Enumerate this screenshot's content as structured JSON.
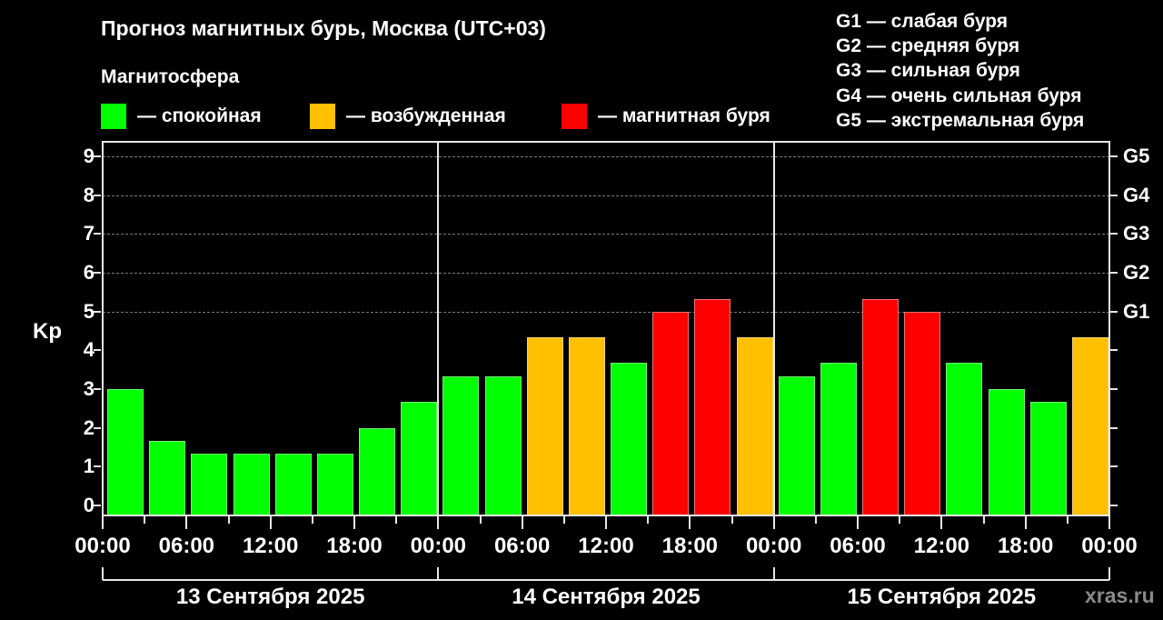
{
  "header": {
    "title": "Прогноз магнитных бурь, Москва (UTC+03)"
  },
  "legend": {
    "title": "Магнитосфера",
    "items": [
      {
        "label": "— спокойная",
        "color": "#00ff00",
        "key": "quiet"
      },
      {
        "label": "— возбужденная",
        "color": "#ffc000",
        "key": "unsettled"
      },
      {
        "label": "— магнитная буря",
        "color": "#ff0000",
        "key": "storm"
      }
    ]
  },
  "g_scale": [
    "G1 — слабая буря",
    "G2 — средняя буря",
    "G3 — сильная буря",
    "G4 — очень сильная буря",
    "G5 — экстремальная буря"
  ],
  "watermark": "xras.ru",
  "chart_data": {
    "type": "bar",
    "title": "Прогноз магнитных бурь, Москва (UTC+03)",
    "ylabel": "Kp",
    "xlabel": "",
    "ylim": [
      0,
      9
    ],
    "yticks": [
      0,
      1,
      2,
      3,
      4,
      5,
      6,
      7,
      8,
      9
    ],
    "right_axis_labels": [
      {
        "value": 5,
        "label": "G1"
      },
      {
        "value": 6,
        "label": "G2"
      },
      {
        "value": 7,
        "label": "G3"
      },
      {
        "value": 8,
        "label": "G4"
      },
      {
        "value": 9,
        "label": "G5"
      }
    ],
    "grid": "dashed horizontal at Kp 5–9",
    "xtick_labels": [
      "00:00",
      "06:00",
      "12:00",
      "18:00",
      "00:00",
      "06:00",
      "12:00",
      "18:00",
      "00:00",
      "06:00",
      "12:00",
      "18:00",
      "00:00"
    ],
    "days": [
      "13 Сентября 2025",
      "14 Сентября 2025",
      "15 Сентября 2025"
    ],
    "interval_hours": 3,
    "categories": [
      "13.09 00-03",
      "13.09 03-06",
      "13.09 06-09",
      "13.09 09-12",
      "13.09 12-15",
      "13.09 15-18",
      "13.09 18-21",
      "13.09 21-24",
      "14.09 00-03",
      "14.09 03-06",
      "14.09 06-09",
      "14.09 09-12",
      "14.09 12-15",
      "14.09 15-18",
      "14.09 18-21",
      "14.09 21-24",
      "15.09 00-03",
      "15.09 03-06",
      "15.09 06-09",
      "15.09 09-12",
      "15.09 12-15",
      "15.09 15-18",
      "15.09 18-21",
      "15.09 21-24"
    ],
    "values": [
      3.0,
      1.67,
      1.33,
      1.33,
      1.33,
      1.33,
      2.0,
      2.67,
      3.33,
      3.33,
      4.33,
      4.33,
      3.67,
      5.0,
      5.33,
      4.33,
      3.33,
      3.67,
      5.33,
      5.0,
      3.67,
      3.0,
      2.67,
      4.33
    ],
    "states": [
      "quiet",
      "quiet",
      "quiet",
      "quiet",
      "quiet",
      "quiet",
      "quiet",
      "quiet",
      "quiet",
      "quiet",
      "unsettled",
      "unsettled",
      "quiet",
      "storm",
      "storm",
      "unsettled",
      "quiet",
      "quiet",
      "storm",
      "storm",
      "quiet",
      "quiet",
      "quiet",
      "unsettled"
    ],
    "colors": {
      "quiet": "#00ff00",
      "unsettled": "#ffc000",
      "storm": "#ff0000"
    }
  }
}
